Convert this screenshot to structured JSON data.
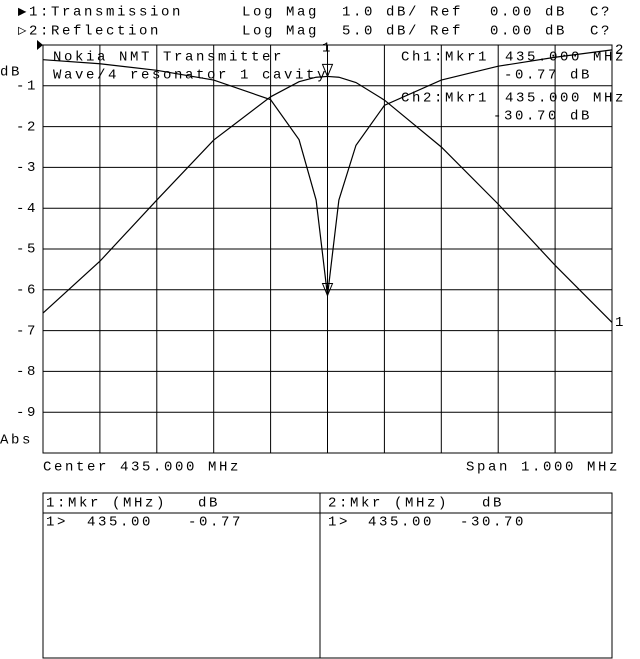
{
  "header": {
    "lines": [
      [
        "▶1:Transmission",
        "Log Mag",
        "1.0 dB/",
        "Ref",
        "0.00 dB",
        "C?"
      ],
      [
        "▷2:Reflection",
        "Log Mag",
        "5.0 dB/",
        "Ref",
        "0.00 dB",
        "C?"
      ]
    ]
  },
  "chart_data": {
    "type": "line",
    "ylabel": "dB",
    "format": "Abs",
    "annotations": [
      "Nokia NMT Transmitter",
      "Wave/4 resonator 1 cavity"
    ],
    "marker_readouts": [
      [
        "Ch1:Mkr1",
        "435.000 MHz",
        "-0.77 dB"
      ],
      [
        "Ch2:Mkr1",
        "435.000 MHz",
        "-30.70 dB"
      ]
    ],
    "x_left_label": "Center 435.000 MHz",
    "x_right_label": "Span 1.000 MHz",
    "x": [
      434.5,
      434.6,
      434.7,
      434.8,
      434.9,
      434.95,
      434.98,
      435.0,
      435.02,
      435.05,
      435.1,
      435.2,
      435.3,
      435.4,
      435.5
    ],
    "xlim": [
      434.5,
      435.5
    ],
    "xticks": [
      434.5,
      434.6,
      434.7,
      434.8,
      434.9,
      435.0,
      435.1,
      435.2,
      435.3,
      435.4,
      435.5
    ],
    "ylim": [
      -10,
      0
    ],
    "yticks": [
      -1,
      -2,
      -3,
      -4,
      -5,
      -6,
      -7,
      -8,
      -9
    ],
    "y2lim": [
      -50,
      0
    ],
    "grid": true,
    "series": [
      {
        "name": "1",
        "color": "#000000",
        "values": [
          -6.57,
          -5.3,
          -3.8,
          -2.33,
          -1.27,
          -0.9,
          -0.79,
          -0.77,
          -0.79,
          -0.92,
          -1.35,
          -2.5,
          -3.9,
          -5.4,
          -6.8
        ]
      },
      {
        "name": "2",
        "color": "#000000",
        "axis": "y2",
        "values": [
          -1.8,
          -2.3,
          -3.1,
          -4.3,
          -6.7,
          -11.6,
          -19,
          -30.7,
          -19,
          -12.3,
          -7.4,
          -4.3,
          -2.6,
          -1.5,
          -0.6
        ]
      }
    ],
    "markers": [
      {
        "label": "1",
        "index": 7
      }
    ]
  },
  "marker_table": {
    "panels": [
      {
        "header": [
          "1:Mkr (MHz)",
          "dB"
        ],
        "rows": [
          [
            "1>",
            "435.00",
            "-0.77"
          ]
        ]
      },
      {
        "header": [
          "2:Mkr (MHz)",
          "dB"
        ],
        "rows": [
          [
            "1>",
            "435.00",
            "-30.70"
          ]
        ]
      }
    ]
  }
}
